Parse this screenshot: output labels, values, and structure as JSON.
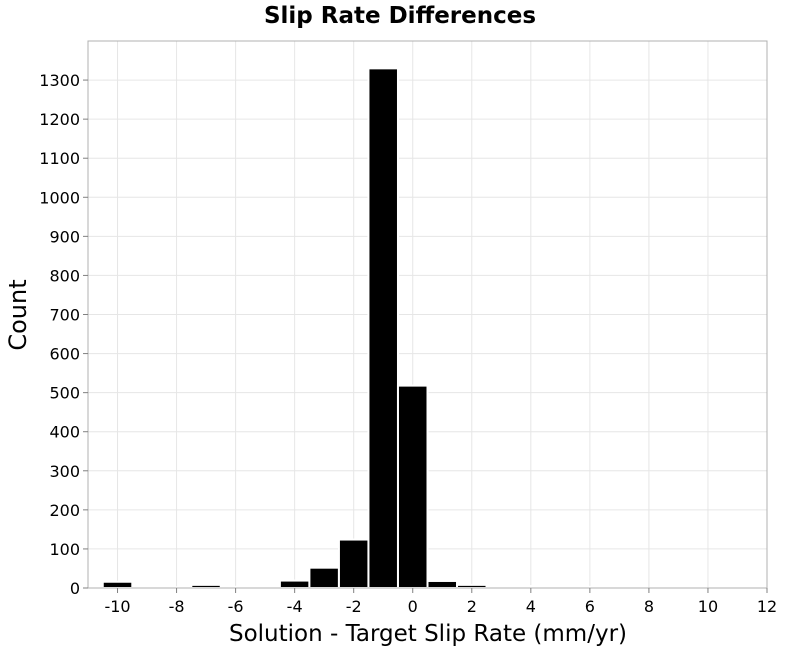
{
  "chart_data": {
    "type": "bar",
    "title": "Slip Rate Differences",
    "xlabel": "Solution - Target Slip Rate (mm/yr)",
    "ylabel": "Count",
    "xlim": [
      -11,
      12
    ],
    "ylim": [
      0,
      1400
    ],
    "xticks": [
      -10,
      -8,
      -6,
      -4,
      -2,
      0,
      2,
      4,
      6,
      8,
      10,
      12
    ],
    "yticks": [
      0,
      100,
      200,
      300,
      400,
      500,
      600,
      700,
      800,
      900,
      1000,
      1100,
      1200,
      1300
    ],
    "bin_width": 1,
    "x": [
      -10,
      -9,
      -8,
      -7,
      -6,
      -5,
      -4,
      -3,
      -2,
      -1,
      0,
      1,
      2,
      3,
      4,
      5,
      6,
      7,
      8,
      9,
      10
    ],
    "values": [
      16,
      0,
      2,
      8,
      3,
      2,
      19,
      52,
      124,
      1330,
      518,
      18,
      8,
      2,
      5,
      0,
      3,
      0,
      0,
      0,
      0
    ],
    "bar_color": "#000000",
    "bar_edge_color": "#ffffff",
    "grid": true
  }
}
